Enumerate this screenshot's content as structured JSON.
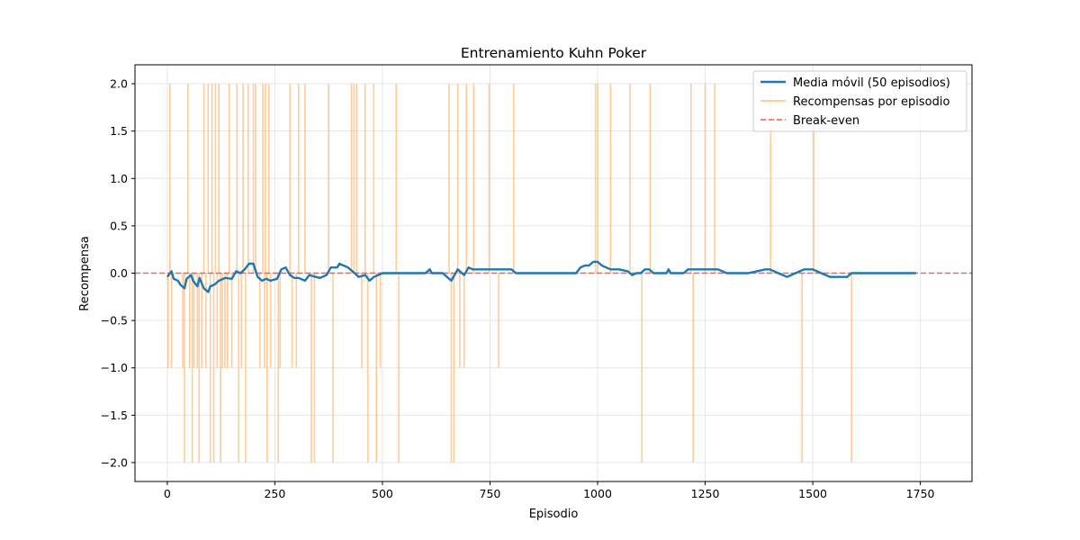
{
  "chart_data": {
    "type": "line",
    "title": "Entrenamiento Kuhn Poker",
    "xlabel": "Episodio",
    "ylabel": "Recompensa",
    "xlim": [
      -75,
      1870
    ],
    "ylim": [
      -2.2,
      2.2
    ],
    "xticks": [
      0,
      250,
      500,
      750,
      1000,
      1250,
      1500,
      1750
    ],
    "yticks": [
      -2.0,
      -1.5,
      -1.0,
      -0.5,
      0.0,
      0.5,
      1.0,
      1.5,
      2.0
    ],
    "grid": true,
    "legend_position": "top-right",
    "legend": [
      {
        "name": "Media móvil (50 episodios)",
        "style": "solid-thick",
        "color": "#1f77b4"
      },
      {
        "name": "Recompensas por episodio",
        "style": "solid-thin",
        "color": "#ffbb78"
      },
      {
        "name": "Break-even",
        "style": "dashed",
        "color": "#f05a50"
      }
    ],
    "series": [
      {
        "name": "Recompensas por episodio",
        "color": "#ffbb78",
        "spikes": [
          [
            2,
            -1
          ],
          [
            6,
            2
          ],
          [
            10,
            -1
          ],
          [
            36,
            -1
          ],
          [
            40,
            -2
          ],
          [
            48,
            2
          ],
          [
            52,
            -1
          ],
          [
            58,
            -2
          ],
          [
            62,
            -1
          ],
          [
            70,
            -1
          ],
          [
            74,
            -2
          ],
          [
            80,
            -1
          ],
          [
            85,
            2
          ],
          [
            90,
            -1
          ],
          [
            95,
            2
          ],
          [
            100,
            -2
          ],
          [
            104,
            2
          ],
          [
            108,
            -2
          ],
          [
            112,
            2
          ],
          [
            116,
            -1
          ],
          [
            120,
            2
          ],
          [
            124,
            -2
          ],
          [
            128,
            -1
          ],
          [
            134,
            -1
          ],
          [
            140,
            -1
          ],
          [
            144,
            2
          ],
          [
            150,
            -1
          ],
          [
            162,
            2
          ],
          [
            166,
            -2
          ],
          [
            172,
            -1
          ],
          [
            176,
            2
          ],
          [
            182,
            -2
          ],
          [
            188,
            2
          ],
          [
            200,
            2
          ],
          [
            205,
            2
          ],
          [
            215,
            -1
          ],
          [
            222,
            2
          ],
          [
            226,
            -1
          ],
          [
            228,
            2
          ],
          [
            232,
            -2
          ],
          [
            236,
            2
          ],
          [
            240,
            -1
          ],
          [
            258,
            -2
          ],
          [
            262,
            -1
          ],
          [
            285,
            2
          ],
          [
            290,
            -1
          ],
          [
            300,
            -1
          ],
          [
            305,
            2
          ],
          [
            320,
            2
          ],
          [
            335,
            -2
          ],
          [
            342,
            -2
          ],
          [
            375,
            2
          ],
          [
            385,
            -2
          ],
          [
            428,
            2
          ],
          [
            434,
            2
          ],
          [
            440,
            2
          ],
          [
            452,
            -1
          ],
          [
            460,
            2
          ],
          [
            466,
            -2
          ],
          [
            480,
            2
          ],
          [
            486,
            -2
          ],
          [
            495,
            -1
          ],
          [
            532,
            2
          ],
          [
            538,
            -2
          ],
          [
            655,
            2
          ],
          [
            660,
            -2
          ],
          [
            666,
            -2
          ],
          [
            675,
            2
          ],
          [
            680,
            -1
          ],
          [
            690,
            -1
          ],
          [
            695,
            2
          ],
          [
            712,
            2
          ],
          [
            748,
            2
          ],
          [
            770,
            -1
          ],
          [
            805,
            2
          ],
          [
            995,
            2
          ],
          [
            1000,
            2
          ],
          [
            1030,
            2
          ],
          [
            1075,
            2
          ],
          [
            1103,
            -2
          ],
          [
            1122,
            2
          ],
          [
            1217,
            2
          ],
          [
            1222,
            -2
          ],
          [
            1250,
            2
          ],
          [
            1272,
            2
          ],
          [
            1402,
            2
          ],
          [
            1475,
            -2
          ],
          [
            1502,
            2
          ],
          [
            1590,
            -2
          ]
        ],
        "baseline": 0
      },
      {
        "name": "Media móvil (50 episodios)",
        "color": "#1f77b4",
        "x": [
          0,
          10,
          15,
          25,
          30,
          40,
          45,
          55,
          60,
          70,
          75,
          85,
          95,
          100,
          110,
          120,
          135,
          150,
          160,
          170,
          180,
          190,
          200,
          210,
          220,
          230,
          240,
          255,
          265,
          275,
          285,
          295,
          305,
          320,
          330,
          345,
          355,
          370,
          380,
          395,
          400,
          410,
          420,
          435,
          445,
          460,
          470,
          480,
          490,
          500,
          510,
          600,
          610,
          615,
          640,
          650,
          660,
          670,
          675,
          685,
          690,
          700,
          710,
          720,
          750,
          760,
          800,
          810,
          950,
          960,
          970,
          980,
          990,
          1000,
          1010,
          1020,
          1030,
          1050,
          1070,
          1080,
          1090,
          1100,
          1110,
          1120,
          1130,
          1160,
          1165,
          1170,
          1200,
          1210,
          1220,
          1250,
          1260,
          1280,
          1300,
          1350,
          1390,
          1400,
          1420,
          1440,
          1460,
          1480,
          1500,
          1520,
          1540,
          1560,
          1580,
          1590,
          1650,
          1700,
          1740
        ],
        "y": [
          -0.04,
          0.02,
          -0.06,
          -0.08,
          -0.12,
          -0.16,
          -0.06,
          -0.02,
          -0.08,
          -0.14,
          -0.05,
          -0.16,
          -0.2,
          -0.14,
          -0.12,
          -0.08,
          -0.05,
          -0.06,
          0.02,
          0.0,
          0.04,
          0.1,
          0.1,
          -0.04,
          -0.08,
          -0.06,
          -0.08,
          -0.06,
          0.04,
          0.06,
          -0.02,
          -0.05,
          -0.05,
          -0.08,
          -0.02,
          -0.04,
          -0.05,
          -0.02,
          0.06,
          0.06,
          0.1,
          0.08,
          0.06,
          0.0,
          -0.04,
          -0.02,
          -0.08,
          -0.04,
          -0.02,
          0.0,
          0.0,
          0.0,
          0.04,
          0.0,
          0.0,
          -0.04,
          -0.08,
          0.0,
          0.04,
          0.0,
          -0.02,
          0.06,
          0.04,
          0.04,
          0.04,
          0.04,
          0.04,
          0.0,
          0.0,
          0.06,
          0.08,
          0.08,
          0.12,
          0.12,
          0.08,
          0.06,
          0.04,
          0.04,
          0.02,
          -0.02,
          0.0,
          0.0,
          0.04,
          0.04,
          0.0,
          0.0,
          0.04,
          0.0,
          0.0,
          0.04,
          0.04,
          0.04,
          0.04,
          0.04,
          0.0,
          0.0,
          0.04,
          0.04,
          0.0,
          -0.04,
          0.0,
          0.04,
          0.04,
          0.0,
          -0.04,
          -0.04,
          -0.04,
          0.0,
          0.0,
          0.0,
          0.0
        ]
      },
      {
        "name": "Break-even",
        "color": "#f05a50",
        "y_constant": 0
      }
    ]
  }
}
